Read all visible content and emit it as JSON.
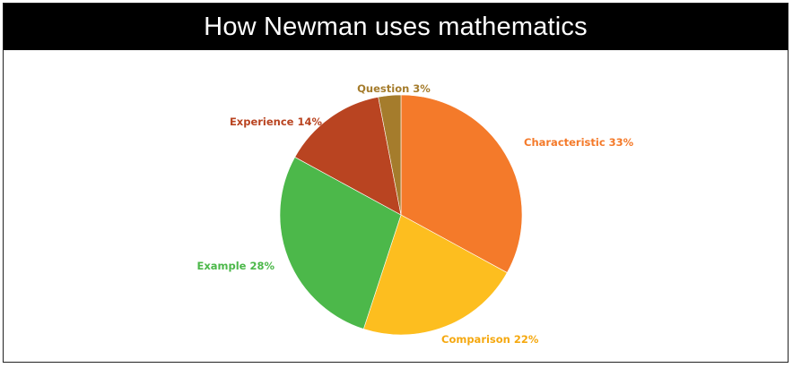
{
  "title": "How Newman uses mathematics",
  "chart_data": {
    "type": "pie",
    "title": "How Newman uses mathematics",
    "slices": [
      {
        "label": "Characteristic 33%",
        "category": "Characteristic",
        "value": 33,
        "color": "#F47A2A",
        "label_color": "#F47A2A"
      },
      {
        "label": "Comparison 22%",
        "category": "Comparison",
        "value": 22,
        "color": "#FDBE1F",
        "label_color": "#F5A80F"
      },
      {
        "label": "Example 28%",
        "category": "Example",
        "value": 28,
        "color": "#4CB84A",
        "label_color": "#4CB84A"
      },
      {
        "label": "Experience 14%",
        "category": "Experience",
        "value": 14,
        "color": "#B94421",
        "label_color": "#B94421"
      },
      {
        "label": "Question 3%",
        "category": "Question",
        "value": 3,
        "color": "#A57C2C",
        "label_color": "#A57C2C"
      }
    ],
    "start_angle": "12 o'clock",
    "direction": "clockwise",
    "legend": "none"
  }
}
